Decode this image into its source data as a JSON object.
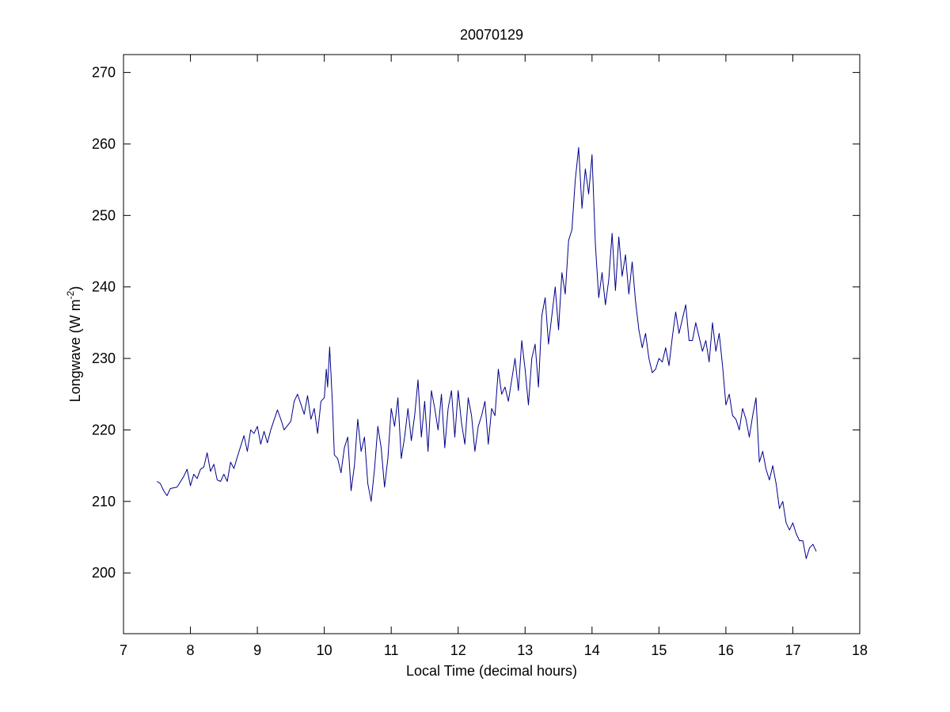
{
  "chart_data": {
    "type": "line",
    "title": "20070129",
    "xlabel": "Local Time (decimal hours)",
    "ylabel_base": "Longwave (W m",
    "ylabel_sup": "-2",
    "ylabel_close": ")",
    "xlim": [
      7,
      18
    ],
    "ylim": [
      191.5,
      272.5
    ],
    "xticks": [
      7,
      8,
      9,
      10,
      11,
      12,
      13,
      14,
      15,
      16,
      17,
      18
    ],
    "xtick_labels": [
      "7",
      "8",
      "9",
      "10",
      "11",
      "12",
      "13",
      "14",
      "15",
      "16",
      "17",
      "18"
    ],
    "yticks": [
      200,
      210,
      220,
      230,
      240,
      250,
      260,
      270
    ],
    "ytick_labels": [
      "200",
      "210",
      "220",
      "230",
      "240",
      "250",
      "260",
      "270"
    ],
    "grid": false,
    "legend": "none",
    "series": [
      {
        "color": "#00008b",
        "x": [
          7.5,
          7.55,
          7.6,
          7.65,
          7.7,
          7.8,
          7.9,
          7.95,
          8.0,
          8.05,
          8.1,
          8.15,
          8.2,
          8.25,
          8.3,
          8.35,
          8.4,
          8.45,
          8.5,
          8.55,
          8.6,
          8.65,
          8.7,
          8.8,
          8.85,
          8.9,
          8.95,
          9.0,
          9.05,
          9.1,
          9.15,
          9.2,
          9.3,
          9.35,
          9.4,
          9.5,
          9.55,
          9.6,
          9.7,
          9.75,
          9.8,
          9.85,
          9.9,
          9.95,
          10.0,
          10.03,
          10.05,
          10.08,
          10.12,
          10.15,
          10.2,
          10.25,
          10.3,
          10.35,
          10.4,
          10.45,
          10.5,
          10.55,
          10.6,
          10.65,
          10.7,
          10.75,
          10.8,
          10.85,
          10.9,
          10.95,
          11.0,
          11.05,
          11.1,
          11.15,
          11.2,
          11.25,
          11.3,
          11.35,
          11.4,
          11.45,
          11.5,
          11.55,
          11.6,
          11.65,
          11.7,
          11.75,
          11.8,
          11.85,
          11.9,
          11.95,
          12.0,
          12.05,
          12.1,
          12.15,
          12.2,
          12.25,
          12.3,
          12.35,
          12.4,
          12.45,
          12.5,
          12.55,
          12.6,
          12.65,
          12.7,
          12.75,
          12.8,
          12.85,
          12.9,
          12.95,
          13.0,
          13.05,
          13.1,
          13.15,
          13.2,
          13.25,
          13.3,
          13.35,
          13.4,
          13.45,
          13.5,
          13.55,
          13.6,
          13.65,
          13.7,
          13.75,
          13.8,
          13.85,
          13.9,
          13.95,
          14.0,
          14.05,
          14.1,
          14.15,
          14.2,
          14.25,
          14.3,
          14.35,
          14.4,
          14.45,
          14.5,
          14.55,
          14.6,
          14.65,
          14.7,
          14.75,
          14.8,
          14.85,
          14.9,
          14.95,
          15.0,
          15.05,
          15.1,
          15.15,
          15.2,
          15.25,
          15.3,
          15.35,
          15.4,
          15.45,
          15.5,
          15.55,
          15.6,
          15.65,
          15.7,
          15.75,
          15.8,
          15.85,
          15.9,
          15.95,
          16.0,
          16.05,
          16.1,
          16.15,
          16.2,
          16.25,
          16.3,
          16.35,
          16.4,
          16.45,
          16.5,
          16.55,
          16.6,
          16.65,
          16.7,
          16.75,
          16.8,
          16.85,
          16.9,
          16.95,
          17.0,
          17.05,
          17.1,
          17.15,
          17.2,
          17.25,
          17.3,
          17.35
        ],
        "y": [
          212.8,
          212.5,
          211.5,
          210.8,
          211.8,
          212.0,
          213.5,
          214.5,
          212.2,
          213.8,
          213.2,
          214.5,
          214.8,
          216.8,
          214.2,
          215.2,
          213.0,
          212.8,
          213.8,
          212.8,
          215.5,
          214.6,
          216.2,
          219.2,
          217.0,
          220.0,
          219.5,
          220.5,
          218.0,
          219.8,
          218.2,
          220.0,
          222.8,
          221.5,
          220.0,
          221.2,
          224.0,
          225.0,
          222.2,
          224.8,
          221.5,
          223.0,
          219.5,
          224.0,
          224.5,
          228.5,
          226.0,
          231.6,
          224.0,
          216.5,
          216.0,
          214.0,
          217.5,
          219.0,
          211.5,
          215.0,
          221.5,
          217.0,
          219.0,
          212.5,
          210.0,
          214.5,
          220.5,
          217.5,
          212.0,
          216.0,
          223.0,
          220.5,
          224.5,
          216.0,
          219.0,
          223.0,
          218.5,
          222.0,
          227.0,
          219.0,
          224.0,
          217.0,
          225.5,
          223.0,
          220.0,
          225.0,
          217.5,
          223.0,
          225.5,
          219.0,
          225.5,
          221.0,
          218.0,
          224.5,
          222.0,
          217.0,
          220.5,
          222.0,
          224.0,
          218.0,
          223.0,
          222.0,
          228.5,
          225.0,
          226.0,
          224.0,
          227.0,
          230.0,
          225.5,
          232.5,
          228.5,
          223.5,
          230.0,
          232.0,
          226.0,
          236.0,
          238.5,
          232.0,
          236.0,
          240.0,
          234.0,
          242.0,
          239.0,
          246.5,
          248.0,
          255.0,
          259.5,
          251.0,
          256.5,
          253.0,
          258.5,
          246.0,
          238.5,
          242.0,
          237.5,
          241.0,
          247.5,
          239.5,
          247.0,
          241.5,
          244.5,
          239.0,
          243.5,
          238.0,
          234.0,
          231.5,
          233.5,
          230.0,
          228.0,
          228.5,
          230.0,
          229.5,
          231.5,
          229.0,
          233.0,
          236.5,
          233.5,
          235.5,
          237.5,
          232.5,
          232.5,
          235.0,
          233.0,
          231.0,
          232.5,
          229.5,
          235.0,
          231.0,
          233.5,
          229.0,
          223.5,
          225.0,
          222.0,
          221.5,
          220.0,
          223.0,
          221.5,
          219.0,
          222.0,
          224.5,
          215.5,
          217.0,
          214.5,
          213.0,
          215.0,
          212.5,
          209.0,
          210.0,
          207.0,
          206.0,
          207.0,
          205.5,
          204.5,
          204.5,
          202.0,
          203.5,
          204.0,
          203.0
        ]
      }
    ]
  }
}
